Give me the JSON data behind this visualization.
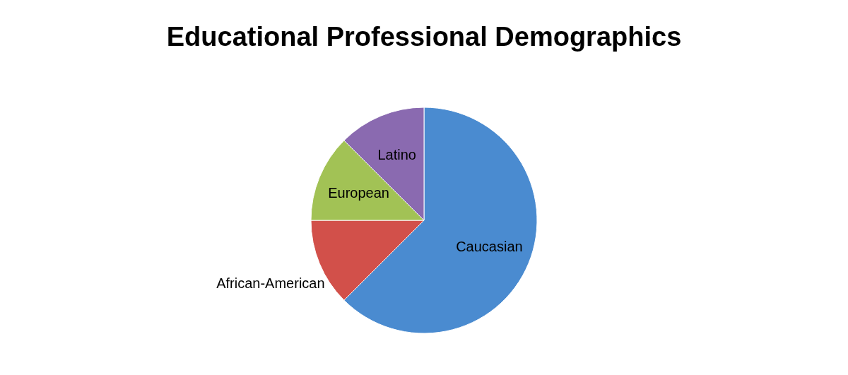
{
  "chart_data": {
    "type": "pie",
    "title": "Educational Professional Demographics",
    "categories": [
      "Caucasian",
      "African-American",
      "European",
      "Latino"
    ],
    "values": [
      62.5,
      12.5,
      12.5,
      12.5
    ],
    "colors": [
      "#4a8bd0",
      "#d2504a",
      "#a2c255",
      "#8a6ab0"
    ]
  }
}
